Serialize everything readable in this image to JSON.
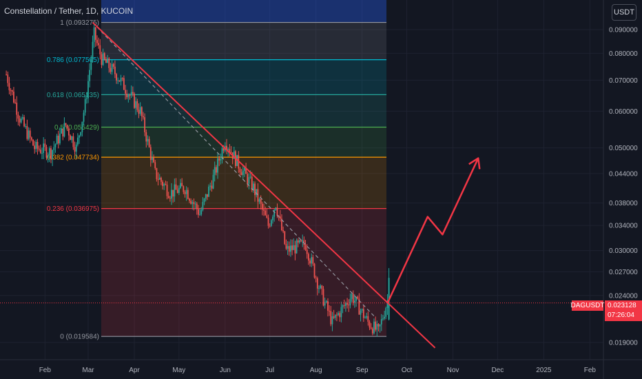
{
  "header": {
    "title": "Constellation / Tether, 1D, KUCOIN",
    "currency": "USDT"
  },
  "price_tag": {
    "symbol": "DAGUSDT",
    "price": "0.023128",
    "countdown": "07:26:04"
  },
  "colors": {
    "background": "#131722",
    "up": "#26a69a",
    "down": "#ef5350",
    "trendline": "#f23645",
    "projection": "#f23645"
  },
  "chart_data": {
    "type": "candlestick",
    "scale": "log",
    "y_ticks": [
      "0.090000",
      "0.080000",
      "0.070000",
      "0.060000",
      "0.050000",
      "0.044000",
      "0.038000",
      "0.034000",
      "0.030000",
      "0.027000",
      "0.024000",
      "0.019000"
    ],
    "x_ticks": [
      "Feb",
      "Mar",
      "Apr",
      "May",
      "Jun",
      "Jul",
      "Aug",
      "Sep",
      "Oct",
      "Nov",
      "Dec",
      "2025",
      "Feb"
    ],
    "fib_levels": [
      {
        "label": "1 (0.093275)",
        "value": 0.093275,
        "color": "#9598a1"
      },
      {
        "label": "0.786 (0.077505)",
        "value": 0.077505,
        "color": "#00bcd4"
      },
      {
        "label": "0.618 (0.065135)",
        "value": 0.065135,
        "color": "#26a69a"
      },
      {
        "label": "0.5 (0.055429)",
        "value": 0.055429,
        "color": "#4caf50"
      },
      {
        "label": "0.382 (0.047734)",
        "value": 0.047734,
        "color": "#ff9800"
      },
      {
        "label": "0.236 (0.036975)",
        "value": 0.036975,
        "color": "#f23645"
      },
      {
        "label": "0 (0.019584)",
        "value": 0.019584,
        "color": "#9598a1"
      }
    ],
    "last_price": 0.023128,
    "price_path": [
      [
        "2024-01-06",
        0.072
      ],
      [
        "2024-01-15",
        0.058
      ],
      [
        "2024-01-25",
        0.05
      ],
      [
        "2024-02-05",
        0.049
      ],
      [
        "2024-02-15",
        0.056
      ],
      [
        "2024-02-22",
        0.05
      ],
      [
        "2024-02-28",
        0.062
      ],
      [
        "2024-03-05",
        0.088
      ],
      [
        "2024-03-10",
        0.078
      ],
      [
        "2024-03-20",
        0.072
      ],
      [
        "2024-04-05",
        0.06
      ],
      [
        "2024-04-15",
        0.044
      ],
      [
        "2024-04-25",
        0.04
      ],
      [
        "2024-05-05",
        0.041
      ],
      [
        "2024-05-15",
        0.036
      ],
      [
        "2024-05-25",
        0.044
      ],
      [
        "2024-06-01",
        0.052
      ],
      [
        "2024-06-10",
        0.046
      ],
      [
        "2024-06-20",
        0.041
      ],
      [
        "2024-06-30",
        0.034
      ],
      [
        "2024-07-05",
        0.038
      ],
      [
        "2024-07-12",
        0.03
      ],
      [
        "2024-07-25",
        0.031
      ],
      [
        "2024-08-05",
        0.024
      ],
      [
        "2024-08-12",
        0.021
      ],
      [
        "2024-08-25",
        0.024
      ],
      [
        "2024-09-05",
        0.021
      ],
      [
        "2024-09-12",
        0.02
      ],
      [
        "2024-09-18",
        0.0234
      ]
    ],
    "trendline": [
      [
        "2024-03-04",
        0.093275
      ],
      [
        "2024-10-20",
        0.0185
      ]
    ],
    "dashed_line": [
      [
        "2024-03-04",
        0.093275
      ],
      [
        "2024-09-10",
        0.0215
      ]
    ],
    "projection": [
      [
        "2024-09-18",
        0.0231
      ],
      [
        "2024-10-15",
        0.0355
      ],
      [
        "2024-10-25",
        0.0325
      ],
      [
        "2024-11-18",
        0.0475
      ]
    ]
  }
}
